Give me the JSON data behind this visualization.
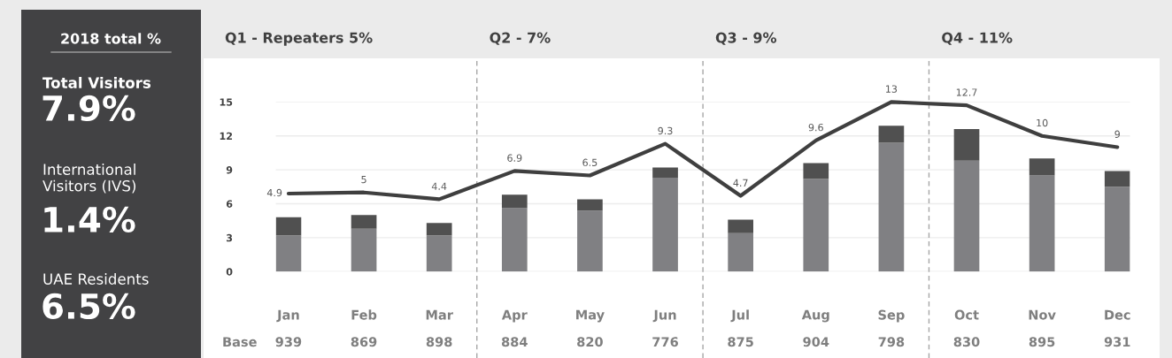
{
  "chart_data": [
    {
      "type": "other",
      "title": "2018 total %",
      "annotations": [
        "Total Visitors",
        "7.9%",
        "International\nVisitors (IVS)",
        "1.4%",
        "UAE Residents",
        "6.5%"
      ]
    },
    {
      "type": "bar",
      "stacked": true,
      "categories": [
        "Jan",
        "Feb",
        "Mar",
        "Apr",
        "May",
        "Jun",
        "Jul",
        "Aug",
        "Sep",
        "Oct",
        "Nov",
        "Dec"
      ],
      "series": [
        {
          "color": "#808083",
          "values": [
            3.2,
            3.8,
            3.2,
            5.6,
            5.4,
            8.3,
            3.4,
            8.2,
            11.4,
            9.8,
            8.5,
            7.5
          ]
        },
        {
          "color": "#505050",
          "values": [
            1.6,
            1.2,
            1.1,
            1.2,
            1.0,
            0.9,
            1.2,
            1.4,
            1.5,
            2.8,
            1.5,
            1.4
          ]
        },
        {
          "type": "line",
          "axis": "y2",
          "color": "#3f3f3f",
          "values": [
            4.9,
            5,
            4.4,
            6.9,
            6.5,
            9.3,
            4.7,
            9.6,
            13,
            12.7,
            10,
            9
          ],
          "value_labels": [
            "4.9",
            "5",
            "4.4",
            "6.9",
            "6.5",
            "9.3",
            "4.7",
            "9.6",
            "13",
            "12.7",
            "10",
            "9"
          ]
        }
      ],
      "ylim": [
        0,
        15
      ],
      "yticks": [
        0,
        3,
        6,
        9,
        12,
        15
      ],
      "y2lim": [
        -2,
        13
      ],
      "grid": "y",
      "tick_labels": "xy",
      "annotations": [
        "Q1 - Repeaters 5%",
        "Q2 - 7%",
        "Q3 - 9%",
        "Q4 - 11%",
        "Base",
        "939",
        "869",
        "898",
        "884",
        "820",
        "776",
        "875",
        "904",
        "798",
        "830",
        "895",
        "931"
      ]
    }
  ]
}
